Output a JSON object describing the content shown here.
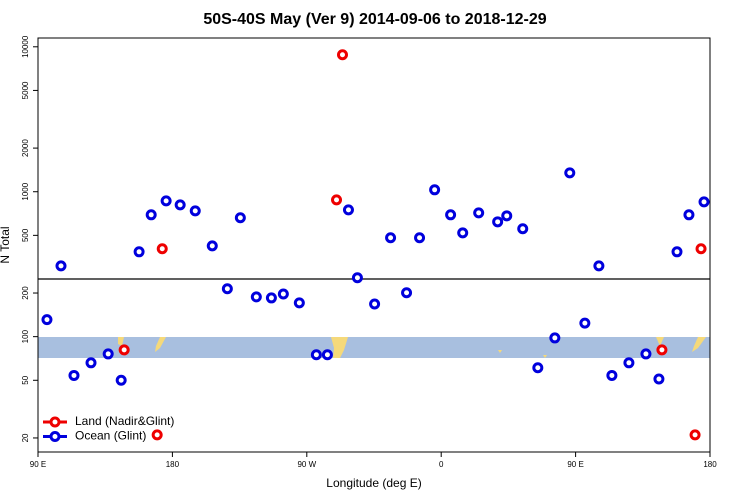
{
  "chart_data": {
    "type": "scatter",
    "title": "50S-40S May (Ver 9)   2014-09-06 to 2018-12-29",
    "x_label": "Longitude (deg E)",
    "y_label": "N Total",
    "log_y": true,
    "xlim": [
      90,
      540
    ],
    "ylim": [
      16,
      11500
    ],
    "xticks": [
      {
        "value": 90,
        "label": "90 E"
      },
      {
        "value": 180,
        "label": "180"
      },
      {
        "value": 270,
        "label": "90 W"
      },
      {
        "value": 360,
        "label": "0"
      },
      {
        "value": 450,
        "label": "90 E"
      },
      {
        "value": 540,
        "label": "180"
      }
    ],
    "yticks": [
      20,
      50,
      100,
      200,
      500,
      1000,
      2000,
      5000,
      10000
    ],
    "hline": 250,
    "legend": "bottom-left",
    "series": [
      {
        "name": "Land (Nadir&Glint)",
        "color": "#ee0000",
        "x": [
          147.7,
          173.2,
          289.9,
          293.9,
          507.8,
          530,
          534,
          169.8
        ],
        "values": [
          81,
          404,
          879,
          8810,
          81,
          21,
          404,
          21
        ]
      },
      {
        "name": "Ocean (Glint)",
        "color": "#0000dd",
        "x": [
          96,
          105.4,
          114.1,
          125.5,
          137,
          145.7,
          157.7,
          165.8,
          175.8,
          185.2,
          195.3,
          206.7,
          216.8,
          225.5,
          236.2,
          246.3,
          254.3,
          265,
          276.4,
          283.8,
          297.9,
          303.9,
          315.4,
          326.1,
          336.8,
          345.5,
          355.6,
          366.3,
          374.4,
          385.1,
          397.8,
          403.9,
          414.6,
          424.7,
          436.1,
          446.1,
          456.2,
          465.6,
          474.3,
          485.7,
          497.1,
          505.8,
          517.9,
          525.9,
          536
        ],
        "values": [
          131,
          308,
          54,
          66,
          76,
          50,
          385,
          693,
          865,
          812,
          738,
          423,
          214,
          661,
          188,
          185,
          197,
          171,
          75,
          75,
          750,
          255,
          168,
          481,
          201,
          481,
          1031,
          693,
          520,
          715,
          620,
          682,
          555,
          61,
          98,
          1350,
          124,
          308,
          54,
          66,
          76,
          51,
          385,
          693,
          851
        ]
      }
    ]
  }
}
